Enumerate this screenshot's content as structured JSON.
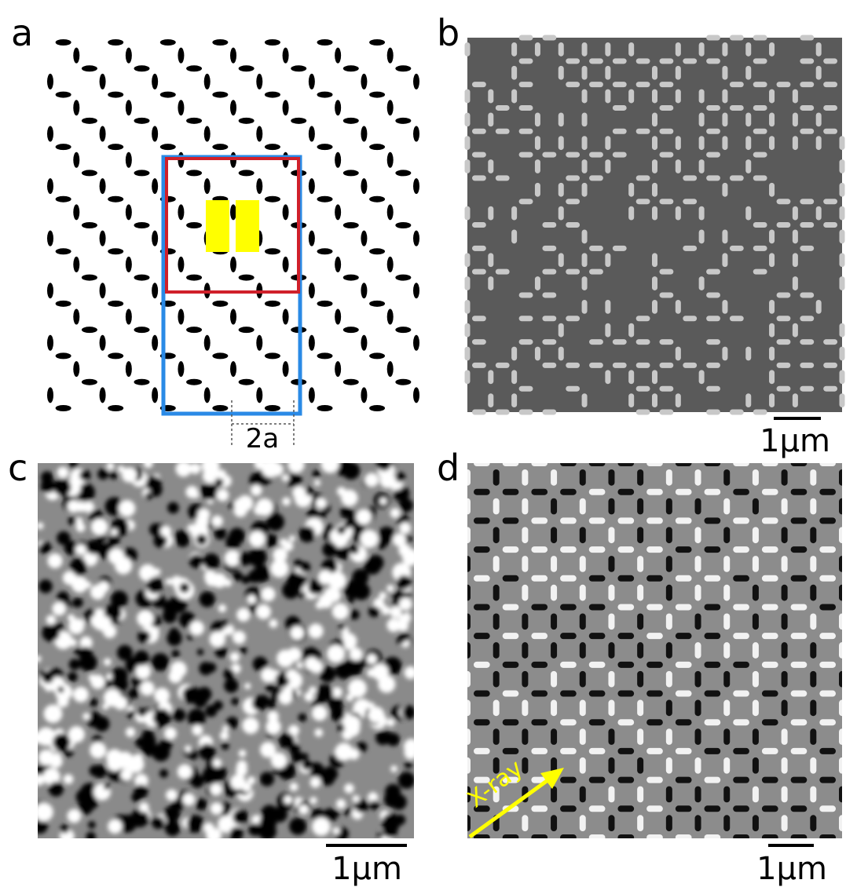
{
  "panels": [
    {
      "label": "a",
      "dimension": "2a"
    },
    {
      "label": "b",
      "scale_bar": "1µm"
    },
    {
      "label": "c",
      "scale_bar": "1µm"
    },
    {
      "label": "d",
      "scale_bar": "1µm",
      "arrow_label": "X-ray"
    }
  ]
}
